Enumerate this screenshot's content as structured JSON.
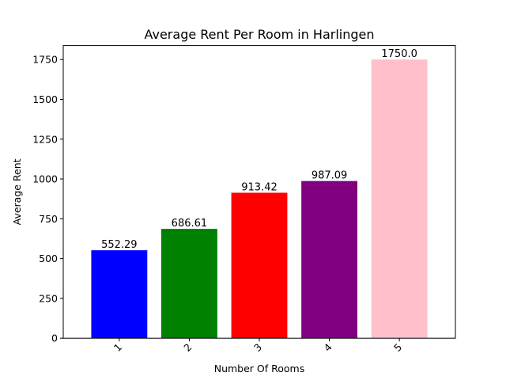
{
  "chart_data": {
    "type": "bar",
    "title": "Average Rent Per Room in Harlingen",
    "xlabel": "Number Of Rooms",
    "ylabel": "Average Rent",
    "categories": [
      "1",
      "2",
      "3",
      "4",
      "5"
    ],
    "values": [
      552.29,
      686.61,
      913.42,
      987.09,
      1750.0
    ],
    "value_labels": [
      "552.29",
      "686.61",
      "913.42",
      "987.09",
      "1750.0"
    ],
    "colors": [
      "#0000ff",
      "#008000",
      "#ff0000",
      "#800080",
      "#ffc0cb"
    ],
    "ylim": [
      0,
      1837.5
    ],
    "yticks": [
      0,
      250,
      500,
      750,
      1000,
      1250,
      1500,
      1750
    ],
    "x_tick_rotation": 45,
    "grid": false,
    "legend": "none"
  }
}
